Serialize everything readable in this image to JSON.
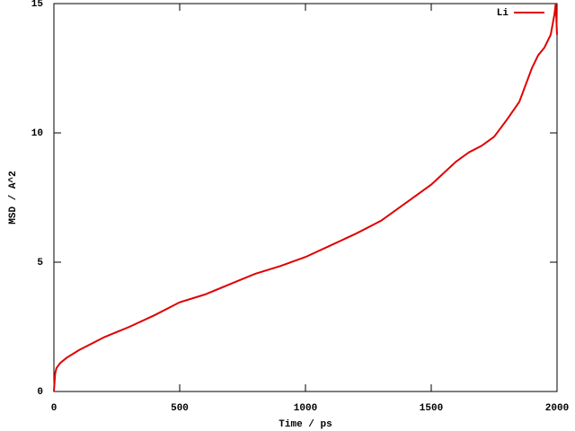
{
  "chart_data": {
    "type": "line",
    "xlabel": "Time / ps",
    "ylabel": "MSD / A^2",
    "x": [
      0,
      5,
      10,
      25,
      50,
      100,
      200,
      300,
      400,
      500,
      600,
      700,
      800,
      900,
      1000,
      1100,
      1200,
      1300,
      1400,
      1500,
      1600,
      1650,
      1700,
      1750,
      1800,
      1850,
      1900,
      1925,
      1950,
      1975,
      1990,
      1995,
      2000
    ],
    "series": [
      {
        "name": "Li",
        "color": "#e00000",
        "values": [
          0,
          0.7,
          0.9,
          1.1,
          1.3,
          1.6,
          2.1,
          2.5,
          2.95,
          3.45,
          3.75,
          4.15,
          4.55,
          4.85,
          5.2,
          5.65,
          6.1,
          6.6,
          7.3,
          8.0,
          8.9,
          9.25,
          9.5,
          9.85,
          10.5,
          11.2,
          12.5,
          13.0,
          13.3,
          13.8,
          14.6,
          15,
          13.8
        ]
      }
    ],
    "xlim": [
      0,
      2000
    ],
    "xticks": [
      0,
      500,
      1000,
      1500,
      2000
    ],
    "ylim": [
      0,
      15
    ],
    "yticks": [
      0,
      5,
      10,
      15
    ],
    "legend": "top-right"
  }
}
